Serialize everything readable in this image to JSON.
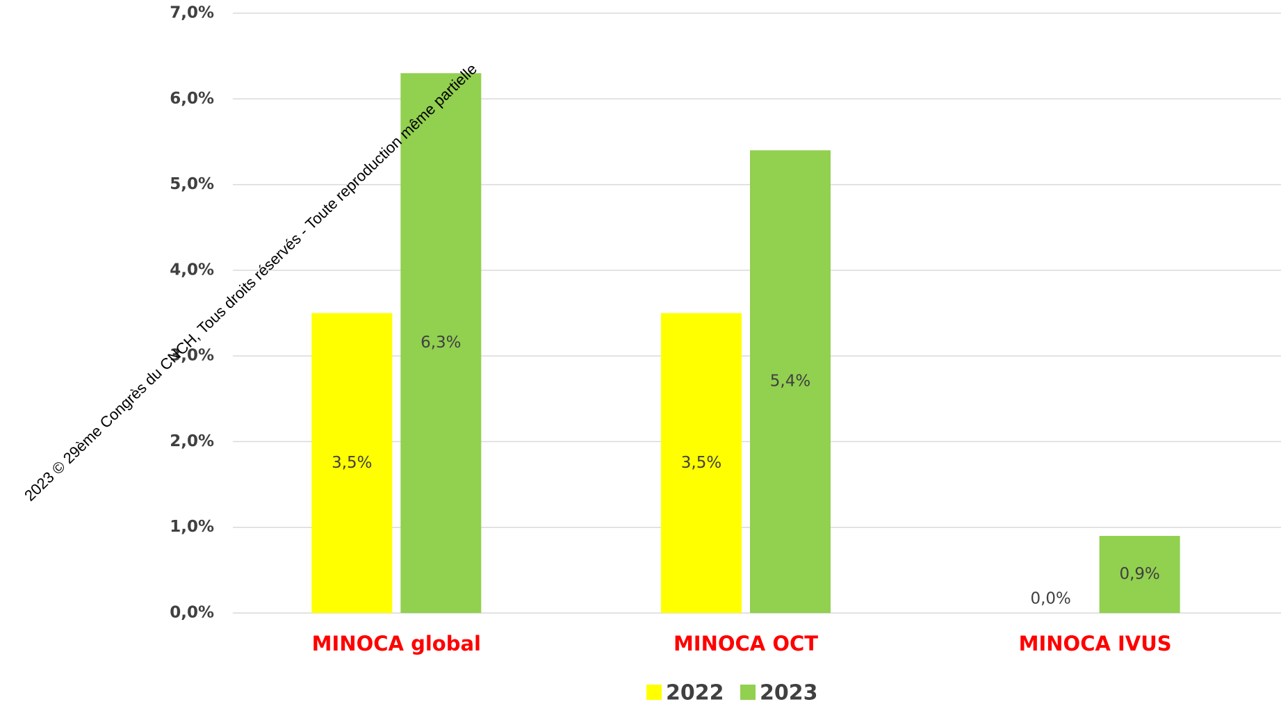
{
  "chart_data": {
    "type": "bar",
    "categories": [
      "MINOCA global",
      "MINOCA OCT",
      "MINOCA IVUS"
    ],
    "series": [
      {
        "name": "2022",
        "color": "#ffff00",
        "values": [
          3.5,
          3.5,
          0.0
        ],
        "value_labels": [
          "3,5%",
          "3,5%",
          "0,0%"
        ]
      },
      {
        "name": "2023",
        "color": "#92d050",
        "values": [
          6.3,
          5.4,
          0.9
        ],
        "value_labels": [
          "6,3%",
          "5,4%",
          "0,9%"
        ]
      }
    ],
    "ylim": [
      0,
      7
    ],
    "yticks": [
      {
        "value": 0,
        "label": "0,0%"
      },
      {
        "value": 1,
        "label": "1,0%"
      },
      {
        "value": 2,
        "label": "2,0%"
      },
      {
        "value": 3,
        "label": "3,0%"
      },
      {
        "value": 4,
        "label": "4,0%"
      },
      {
        "value": 5,
        "label": "5,0%"
      },
      {
        "value": 6,
        "label": "6,0%"
      },
      {
        "value": 7,
        "label": "7,0%"
      }
    ],
    "grid": true,
    "legend": "bottom",
    "annotations": [
      "2023 © 29ème Congrès du CNCH, Tous droits réservés - Toute reproduction même partielle"
    ]
  }
}
